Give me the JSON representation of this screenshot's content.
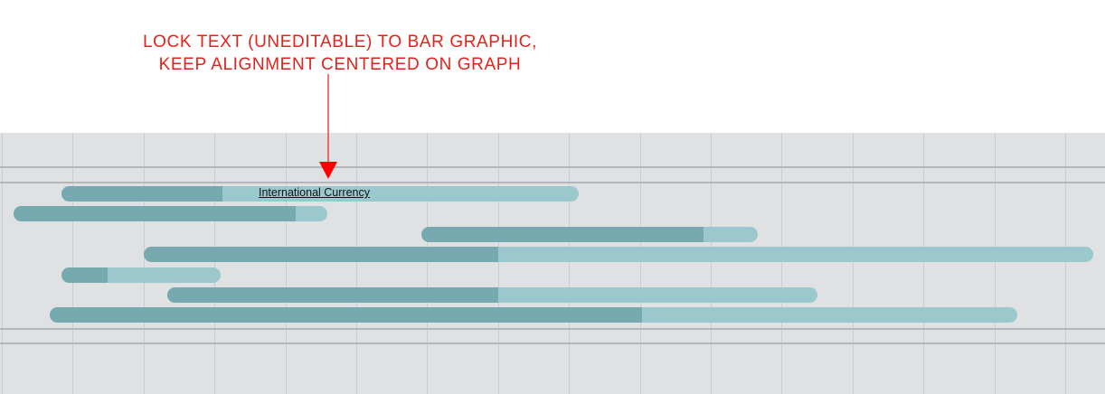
{
  "annotation": {
    "line1": "LOCK TEXT (UNEDITABLE) TO BAR GRAPHIC,",
    "line2": "KEEP ALIGNMENT CENTERED ON GRAPH",
    "color": "#e2231a"
  },
  "bar_label": "International Currency",
  "colors": {
    "progress": "#76aab0",
    "remaining": "#9bc8cc",
    "background": "#e0e1e3"
  },
  "bars": [
    {
      "row": 1,
      "start": 0.056,
      "progress_end": 0.201,
      "end": 0.524,
      "label": "International Currency"
    },
    {
      "row": 2,
      "start": 0.012,
      "progress_end": 0.268,
      "end": 0.296
    },
    {
      "row": 3,
      "start": 0.381,
      "progress_end": 0.637,
      "end": 0.686
    },
    {
      "row": 4,
      "start": 0.13,
      "progress_end": 0.451,
      "end": 0.989
    },
    {
      "row": 5,
      "start": 0.056,
      "progress_end": 0.097,
      "end": 0.2
    },
    {
      "row": 6,
      "start": 0.151,
      "progress_end": 0.451,
      "end": 0.74
    },
    {
      "row": 7,
      "start": 0.045,
      "progress_end": 0.581,
      "end": 0.921
    }
  ]
}
